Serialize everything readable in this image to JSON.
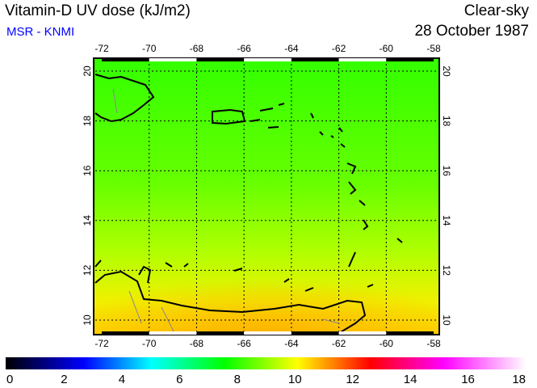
{
  "header": {
    "title": "Vitamin-D UV dose (kJ/m2)",
    "credit": "MSR - KNMI",
    "sky": "Clear-sky",
    "date": "28 October 1987"
  },
  "map": {
    "lon_ticks": [
      "-72",
      "-70",
      "-68",
      "-66",
      "-64",
      "-62",
      "-60",
      "-58"
    ],
    "lat_ticks": [
      "20",
      "18",
      "16",
      "14",
      "12",
      "10"
    ],
    "lon_range": [
      -72.3,
      -57.9
    ],
    "lat_range": [
      9.5,
      20.5
    ]
  },
  "colorbar": {
    "labels": [
      "0",
      "2",
      "4",
      "6",
      "8",
      "10",
      "12",
      "14",
      "16",
      "18"
    ],
    "range": [
      0,
      18
    ],
    "colors": [
      "#000000",
      "#0000ff",
      "#00ffff",
      "#00ff00",
      "#ffff00",
      "#ff0000",
      "#ff00ff",
      "#ffffff"
    ]
  }
}
